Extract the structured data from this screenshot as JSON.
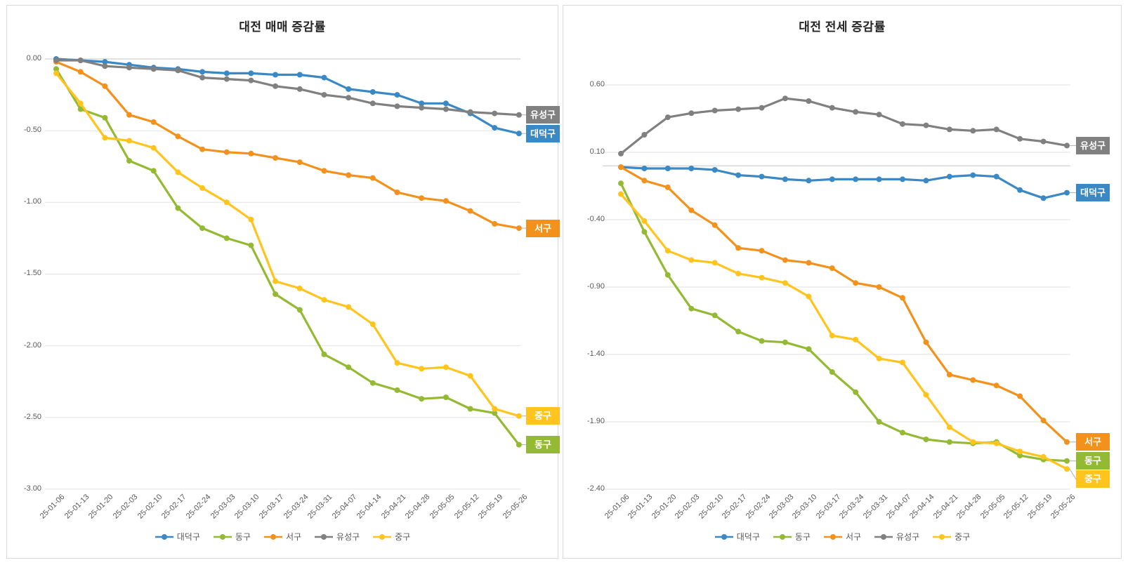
{
  "chart_data": [
    {
      "type": "line",
      "title": "대전 매매 증감률",
      "grid": true,
      "legend_position": "bottom",
      "ylim": [
        -3.0,
        0.0
      ],
      "y_ticks": [
        "0.00",
        "-0.50",
        "-1.00",
        "-1.50",
        "-2.00",
        "-2.50",
        "-3.00"
      ],
      "y_tick_values": [
        0.0,
        -0.5,
        -1.0,
        -1.5,
        -2.0,
        -2.5,
        -3.0
      ],
      "categories": [
        "25-01-06",
        "25-01-13",
        "25-01-20",
        "25-02-03",
        "25-02-10",
        "25-02-17",
        "25-02-24",
        "25-03-03",
        "25-03-10",
        "25-03-17",
        "25-03-24",
        "25-03-31",
        "25-04-07",
        "25-04-14",
        "25-04-21",
        "25-04-28",
        "25-05-05",
        "25-05-12",
        "25-05-19",
        "25-05-26"
      ],
      "series": [
        {
          "id": "daedeok-gu",
          "name": "대덕구",
          "color": "#3a88c4",
          "values": [
            0.0,
            -0.01,
            -0.02,
            -0.04,
            -0.06,
            -0.07,
            -0.09,
            -0.1,
            -0.1,
            -0.11,
            -0.11,
            -0.13,
            -0.21,
            -0.23,
            -0.25,
            -0.31,
            -0.31,
            -0.38,
            -0.48,
            -0.52
          ]
        },
        {
          "id": "dong-gu",
          "name": "동구",
          "color": "#94ba33",
          "values": [
            -0.07,
            -0.35,
            -0.41,
            -0.71,
            -0.78,
            -1.04,
            -1.18,
            -1.25,
            -1.3,
            -1.64,
            -1.75,
            -2.06,
            -2.15,
            -2.26,
            -2.31,
            -2.37,
            -2.36,
            -2.44,
            -2.47,
            -2.69
          ]
        },
        {
          "id": "seo-gu",
          "name": "서구",
          "color": "#f2921d",
          "values": [
            -0.02,
            -0.09,
            -0.19,
            -0.39,
            -0.44,
            -0.54,
            -0.63,
            -0.65,
            -0.66,
            -0.69,
            -0.72,
            -0.78,
            -0.81,
            -0.83,
            -0.93,
            -0.97,
            -0.99,
            -1.06,
            -1.15,
            -1.18
          ]
        },
        {
          "id": "yuseong-gu",
          "name": "유성구",
          "color": "#808080",
          "values": [
            -0.01,
            -0.01,
            -0.05,
            -0.06,
            -0.07,
            -0.08,
            -0.13,
            -0.14,
            -0.15,
            -0.19,
            -0.21,
            -0.25,
            -0.27,
            -0.31,
            -0.33,
            -0.34,
            -0.35,
            -0.37,
            -0.38,
            -0.39
          ]
        },
        {
          "id": "jung-gu",
          "name": "중구",
          "color": "#ffc41d",
          "values": [
            -0.1,
            -0.31,
            -0.55,
            -0.57,
            -0.62,
            -0.79,
            -0.9,
            -1.0,
            -1.12,
            -1.55,
            -1.6,
            -1.68,
            -1.73,
            -1.85,
            -2.12,
            -2.16,
            -2.15,
            -2.21,
            -2.44,
            -2.49
          ]
        }
      ],
      "end_labels": [
        "유성구",
        "대덕구",
        "서구",
        "중구",
        "동구"
      ]
    },
    {
      "type": "line",
      "title": "대전 전세 증감률",
      "grid": true,
      "legend_position": "bottom",
      "ylim": [
        -2.4,
        0.6
      ],
      "y_ticks": [
        "0.60",
        "0.10",
        "-0.40",
        "-0.90",
        "-1.40",
        "-1.90",
        "-2.40"
      ],
      "y_tick_values": [
        0.6,
        0.1,
        -0.4,
        -0.9,
        -1.4,
        -1.9,
        -2.4
      ],
      "categories": [
        "25-01-06",
        "25-01-13",
        "25-01-20",
        "25-02-03",
        "25-02-10",
        "25-02-17",
        "25-02-24",
        "25-03-03",
        "25-03-10",
        "25-03-17",
        "25-03-24",
        "25-03-31",
        "25-04-07",
        "25-04-14",
        "25-04-21",
        "25-04-28",
        "25-05-05",
        "25-05-12",
        "25-05-19",
        "25-05-26"
      ],
      "series": [
        {
          "id": "daedeok-gu",
          "name": "대덕구",
          "color": "#3a88c4",
          "values": [
            -0.01,
            -0.02,
            -0.02,
            -0.02,
            -0.03,
            -0.07,
            -0.08,
            -0.1,
            -0.11,
            -0.1,
            -0.1,
            -0.1,
            -0.1,
            -0.11,
            -0.08,
            -0.07,
            -0.08,
            -0.18,
            -0.24,
            -0.2
          ]
        },
        {
          "id": "dong-gu",
          "name": "동구",
          "color": "#94ba33",
          "values": [
            -0.13,
            -0.49,
            -0.81,
            -1.06,
            -1.11,
            -1.23,
            -1.3,
            -1.31,
            -1.36,
            -1.53,
            -1.68,
            -1.9,
            -1.98,
            -2.03,
            -2.05,
            -2.06,
            -2.05,
            -2.15,
            -2.18,
            -2.19
          ]
        },
        {
          "id": "seo-gu",
          "name": "서구",
          "color": "#f2921d",
          "values": [
            -0.01,
            -0.11,
            -0.16,
            -0.33,
            -0.44,
            -0.61,
            -0.63,
            -0.7,
            -0.72,
            -0.76,
            -0.87,
            -0.9,
            -0.98,
            -1.31,
            -1.55,
            -1.59,
            -1.63,
            -1.71,
            -1.89,
            -2.05
          ]
        },
        {
          "id": "yuseong-gu",
          "name": "유성구",
          "color": "#808080",
          "values": [
            0.09,
            0.23,
            0.36,
            0.39,
            0.41,
            0.42,
            0.43,
            0.5,
            0.48,
            0.43,
            0.4,
            0.38,
            0.31,
            0.3,
            0.27,
            0.26,
            0.27,
            0.2,
            0.18,
            0.15
          ]
        },
        {
          "id": "jung-gu",
          "name": "중구",
          "color": "#ffc41d",
          "values": [
            -0.21,
            -0.41,
            -0.63,
            -0.7,
            -0.72,
            -0.8,
            -0.83,
            -0.87,
            -0.97,
            -1.26,
            -1.29,
            -1.43,
            -1.46,
            -1.7,
            -1.94,
            -2.05,
            -2.06,
            -2.12,
            -2.16,
            -2.25
          ]
        }
      ],
      "end_labels": [
        "유성구",
        "대덕구",
        "서구",
        "동구",
        "중구"
      ]
    }
  ],
  "colors": {
    "gridline": "#e2e2e2",
    "zero_axis": "#c6c6c6",
    "leader_line": "#b0b0b0",
    "tick_text": "#595959",
    "title_text": "#262626"
  }
}
